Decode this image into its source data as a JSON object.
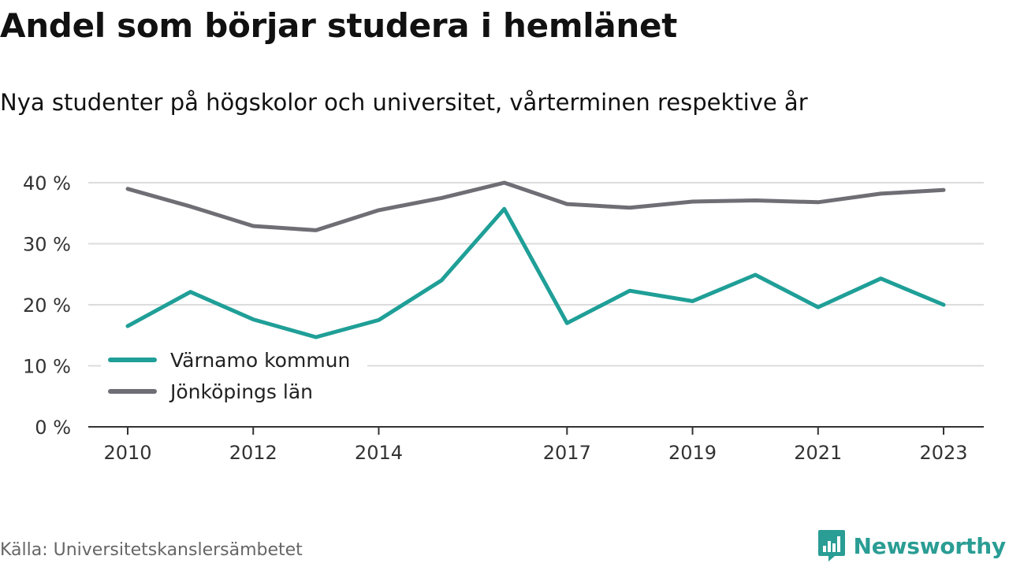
{
  "title": "Andel som börjar studera i hemlänet",
  "subtitle": "Nya studenter på högskolor och universitet, vårterminen respektive år",
  "source": "Källa: Universitetskanslersämbetet",
  "brand": {
    "name": "Newsworthy",
    "icon": "newsworthy-logo-icon",
    "color": "#2a9d94"
  },
  "chart_data": {
    "type": "line",
    "x": [
      2010,
      2011,
      2012,
      2013,
      2014,
      2015,
      2016,
      2017,
      2018,
      2019,
      2020,
      2021,
      2022,
      2023
    ],
    "x_tick_labels": [
      "2010",
      "2012",
      "2014",
      "2017",
      "2019",
      "2021",
      "2023"
    ],
    "y_ticks": [
      0,
      10,
      20,
      30,
      40
    ],
    "y_tick_labels": [
      "0 %",
      "10 %",
      "20 %",
      "30 %",
      "40 %"
    ],
    "ylim": [
      0,
      40
    ],
    "grid": true,
    "legend_position": "bottom-left",
    "series": [
      {
        "name": "Värnamo kommun",
        "color": "#1f9f97",
        "values": [
          16.5,
          22.1,
          17.6,
          14.7,
          17.5,
          24.0,
          35.7,
          17.0,
          22.3,
          20.6,
          24.9,
          19.6,
          24.3,
          20.0
        ]
      },
      {
        "name": "Jönköpings län",
        "color": "#6f6e75",
        "values": [
          39.0,
          36.1,
          32.9,
          32.2,
          35.5,
          37.5,
          40.0,
          36.5,
          35.9,
          36.9,
          37.1,
          36.8,
          38.2,
          38.8
        ]
      }
    ]
  }
}
